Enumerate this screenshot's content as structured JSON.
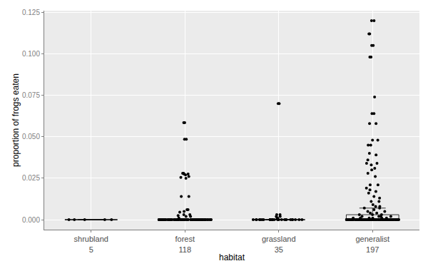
{
  "chart_data": {
    "type": "box",
    "x_label": "habitat",
    "y_label": "proportion of frogs eaten",
    "categories": [
      "shrubland",
      "forest",
      "grassland",
      "generalist"
    ],
    "n": [
      5,
      118,
      35,
      197
    ],
    "color": "#000000",
    "grid": true,
    "ylim": [
      -0.006,
      0.126
    ],
    "yticks": [
      {
        "value": 0,
        "label": "0.000"
      },
      {
        "value": 0.025,
        "label": "0.025"
      },
      {
        "value": 0.05,
        "label": "0.050"
      },
      {
        "value": 0.075,
        "label": "0.075"
      },
      {
        "value": 0.1,
        "label": "0.100"
      },
      {
        "value": 0.125,
        "label": "0.125"
      }
    ],
    "values": [
      [
        0,
        0,
        0,
        0,
        0
      ],
      [
        0.0485,
        0.0485,
        0.0585,
        0.0585,
        0.028,
        0.0275,
        0.0255,
        0.028,
        0.027,
        0.026,
        0.025,
        0.0275,
        0.014,
        0.014,
        0.006,
        0.0045,
        0.003,
        0.0025,
        0.002,
        0.002,
        0.001,
        0.005,
        0.006,
        0.003,
        0,
        0,
        0,
        0,
        0,
        0,
        0,
        0,
        0,
        0,
        0,
        0,
        0,
        0,
        0,
        0,
        0,
        0,
        0,
        0,
        0,
        0,
        0,
        0,
        0,
        0,
        0,
        0,
        0,
        0,
        0,
        0,
        0,
        0,
        0,
        0,
        0,
        0,
        0,
        0,
        0,
        0,
        0,
        0,
        0,
        0,
        0,
        0,
        0,
        0,
        0,
        0,
        0,
        0,
        0,
        0,
        0,
        0,
        0,
        0,
        0,
        0,
        0,
        0,
        0,
        0,
        0,
        0,
        0,
        0,
        0,
        0,
        0,
        0,
        0,
        0,
        0,
        0,
        0,
        0,
        0,
        0,
        0,
        0,
        0,
        0,
        0,
        0,
        0,
        0,
        0,
        0,
        0,
        0
      ],
      [
        0.07,
        0.07,
        0.003,
        0.002,
        0.002,
        0.001,
        0.001,
        0.003,
        0,
        0,
        0,
        0,
        0,
        0,
        0,
        0,
        0,
        0,
        0,
        0,
        0,
        0,
        0,
        0,
        0,
        0,
        0,
        0,
        0,
        0,
        0,
        0,
        0,
        0,
        0
      ],
      [
        0.12,
        0.12,
        0.112,
        0.112,
        0.105,
        0.105,
        0.098,
        0.098,
        0.074,
        0.064,
        0.064,
        0.058,
        0.058,
        0.048,
        0.048,
        0.045,
        0.045,
        0.04,
        0.039,
        0.036,
        0.034,
        0.034,
        0.033,
        0.031,
        0.03,
        0.028,
        0.026,
        0.021,
        0.021,
        0.019,
        0.018,
        0.017,
        0.016,
        0.014,
        0.013,
        0.011,
        0.011,
        0.009,
        0.008,
        0.008,
        0.007,
        0.007,
        0.006,
        0.005,
        0.005,
        0.004,
        0.004,
        0.003,
        0.003,
        0.003,
        0.002,
        0.002,
        0.002,
        0.002,
        0.001,
        0.001,
        0.001,
        0.001,
        0.001,
        0.001,
        0,
        0,
        0,
        0,
        0,
        0,
        0,
        0,
        0,
        0,
        0,
        0,
        0,
        0,
        0,
        0,
        0,
        0,
        0,
        0,
        0,
        0,
        0,
        0,
        0,
        0,
        0,
        0,
        0,
        0,
        0,
        0,
        0,
        0,
        0,
        0,
        0,
        0,
        0,
        0,
        0,
        0,
        0,
        0,
        0,
        0,
        0,
        0,
        0,
        0,
        0,
        0,
        0,
        0,
        0,
        0,
        0,
        0,
        0,
        0,
        0,
        0,
        0,
        0,
        0,
        0,
        0,
        0,
        0,
        0,
        0,
        0,
        0,
        0,
        0,
        0,
        0,
        0,
        0,
        0,
        0,
        0,
        0,
        0,
        0,
        0,
        0,
        0,
        0,
        0,
        0,
        0,
        0,
        0,
        0,
        0,
        0,
        0,
        0,
        0,
        0,
        0,
        0,
        0,
        0,
        0,
        0,
        0,
        0,
        0,
        0,
        0,
        0,
        0,
        0,
        0,
        0,
        0,
        0,
        0,
        0,
        0,
        0,
        0,
        0,
        0,
        0,
        0,
        0,
        0,
        0,
        0,
        0,
        0,
        0,
        0,
        0
      ]
    ]
  }
}
